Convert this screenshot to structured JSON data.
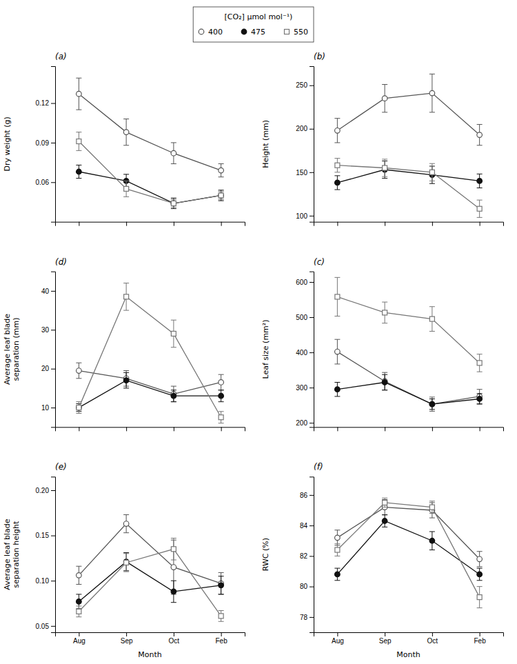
{
  "chart_data": [
    {
      "type": "line",
      "title": "(a)",
      "y_label": "Dry weight (g)",
      "legend": "top",
      "legend_title": "[CO₂] μmol mol⁻¹)",
      "categories": [
        "Aug",
        "Sep",
        "Oct",
        "Feb"
      ],
      "ylim": [
        0.03,
        0.148
      ],
      "yticks": [
        0.06,
        0.09,
        0.12
      ],
      "tick_labels": "y",
      "series": [
        {
          "name": "400",
          "color": "#555555",
          "marker": "open-circle",
          "values": [
            0.127,
            0.098,
            0.082,
            0.069
          ],
          "errors": [
            0.012,
            0.01,
            0.008,
            0.005
          ]
        },
        {
          "name": "475",
          "color": "#111111",
          "marker": "circle",
          "values": [
            0.068,
            0.061,
            0.044,
            0.05
          ],
          "errors": [
            0.005,
            0.005,
            0.004,
            0.004
          ]
        },
        {
          "name": "550",
          "color": "#777777",
          "marker": "open-square",
          "values": [
            0.091,
            0.055,
            0.044,
            0.05
          ],
          "errors": [
            0.007,
            0.006,
            0.003,
            0.003
          ]
        }
      ]
    },
    {
      "type": "line",
      "title": "(b)",
      "y_label": "Height (mm)",
      "categories": [
        "Aug",
        "Sep",
        "Oct",
        "Feb"
      ],
      "ylim": [
        93,
        272
      ],
      "yticks": [
        100,
        150,
        200,
        250
      ],
      "tick_labels": "y",
      "series": [
        {
          "name": "400",
          "color": "#555555",
          "marker": "open-circle",
          "values": [
            198,
            235,
            241,
            193
          ],
          "errors": [
            14,
            16,
            22,
            12
          ]
        },
        {
          "name": "475",
          "color": "#111111",
          "marker": "circle",
          "values": [
            138,
            153,
            147,
            140
          ],
          "errors": [
            8,
            10,
            10,
            8
          ]
        },
        {
          "name": "550",
          "color": "#777777",
          "marker": "open-square",
          "values": [
            158,
            155,
            150,
            108
          ],
          "errors": [
            8,
            10,
            10,
            10
          ]
        }
      ]
    },
    {
      "type": "line",
      "title": "(d)",
      "y_label": "Average leaf blade\nseparation (mm)",
      "categories": [
        "Aug",
        "Sep",
        "Oct",
        "Feb"
      ],
      "ylim": [
        5,
        45
      ],
      "yticks": [
        10,
        20,
        30,
        40
      ],
      "tick_labels": "y",
      "series": [
        {
          "name": "400",
          "color": "#555555",
          "marker": "open-circle",
          "values": [
            19.5,
            17.5,
            13.5,
            16.5
          ],
          "errors": [
            2.0,
            2.0,
            2.0,
            2.0
          ]
        },
        {
          "name": "475",
          "color": "#111111",
          "marker": "circle",
          "values": [
            10.0,
            17.0,
            13.0,
            13.0
          ],
          "errors": [
            1.0,
            2.0,
            1.5,
            1.5
          ]
        },
        {
          "name": "550",
          "color": "#777777",
          "marker": "open-square",
          "values": [
            10.0,
            38.5,
            29.0,
            7.5
          ],
          "errors": [
            1.5,
            3.5,
            3.5,
            1.5
          ]
        }
      ]
    },
    {
      "type": "line",
      "title": "(c)",
      "y_label": "Leaf size (mm²)",
      "categories": [
        "Aug",
        "Sep",
        "Oct",
        "Feb"
      ],
      "ylim": [
        188,
        630
      ],
      "yticks": [
        200,
        300,
        400,
        500,
        600
      ],
      "tick_labels": "y",
      "series": [
        {
          "name": "400",
          "color": "#555555",
          "marker": "open-circle",
          "values": [
            402,
            318,
            253,
            275
          ],
          "errors": [
            35,
            25,
            20,
            20
          ]
        },
        {
          "name": "475",
          "color": "#111111",
          "marker": "circle",
          "values": [
            295,
            315,
            253,
            268
          ],
          "errors": [
            20,
            22,
            15,
            15
          ]
        },
        {
          "name": "550",
          "color": "#777777",
          "marker": "open-square",
          "values": [
            558,
            513,
            495,
            370
          ],
          "errors": [
            55,
            30,
            35,
            25
          ]
        }
      ]
    },
    {
      "type": "line",
      "title": "(e)",
      "y_label": "Average leaf blade\nseparation height",
      "x_label": "Month",
      "categories": [
        "Aug",
        "Sep",
        "Oct",
        "Feb"
      ],
      "ylim": [
        0.043,
        0.215
      ],
      "yticks": [
        0.05,
        {
          "value": 0.1,
          "label": "0.10"
        },
        0.15,
        {
          "value": 0.2,
          "label": "0.20"
        }
      ],
      "series": [
        {
          "name": "400",
          "color": "#555555",
          "marker": "open-circle",
          "values": [
            0.106,
            0.163,
            0.115,
            0.097
          ],
          "errors": [
            0.01,
            0.01,
            0.03,
            0.012
          ]
        },
        {
          "name": "475",
          "color": "#111111",
          "marker": "circle",
          "values": [
            0.077,
            0.121,
            0.088,
            0.095
          ],
          "errors": [
            0.008,
            0.01,
            0.012,
            0.01
          ]
        },
        {
          "name": "550",
          "color": "#777777",
          "marker": "open-square",
          "values": [
            0.066,
            0.12,
            0.135,
            0.061
          ],
          "errors": [
            0.006,
            0.01,
            0.012,
            0.006
          ]
        }
      ]
    },
    {
      "type": "line",
      "title": "(f)",
      "y_label": "RWC (%)",
      "x_label": "Month",
      "categories": [
        "Aug",
        "Sep",
        "Oct",
        "Feb"
      ],
      "ylim": [
        77.0,
        87.2
      ],
      "yticks": [
        78,
        80,
        82,
        84,
        86
      ],
      "series": [
        {
          "name": "400",
          "color": "#555555",
          "marker": "open-circle",
          "values": [
            83.2,
            85.2,
            85.0,
            81.8
          ],
          "errors": [
            0.5,
            0.5,
            0.5,
            0.5
          ]
        },
        {
          "name": "475",
          "color": "#111111",
          "marker": "circle",
          "values": [
            80.8,
            84.3,
            83.0,
            80.8
          ],
          "errors": [
            0.4,
            0.4,
            0.6,
            0.4
          ]
        },
        {
          "name": "550",
          "color": "#777777",
          "marker": "open-square",
          "values": [
            82.4,
            85.5,
            85.2,
            79.3
          ],
          "errors": [
            0.4,
            0.3,
            0.4,
            0.7
          ]
        }
      ]
    }
  ]
}
